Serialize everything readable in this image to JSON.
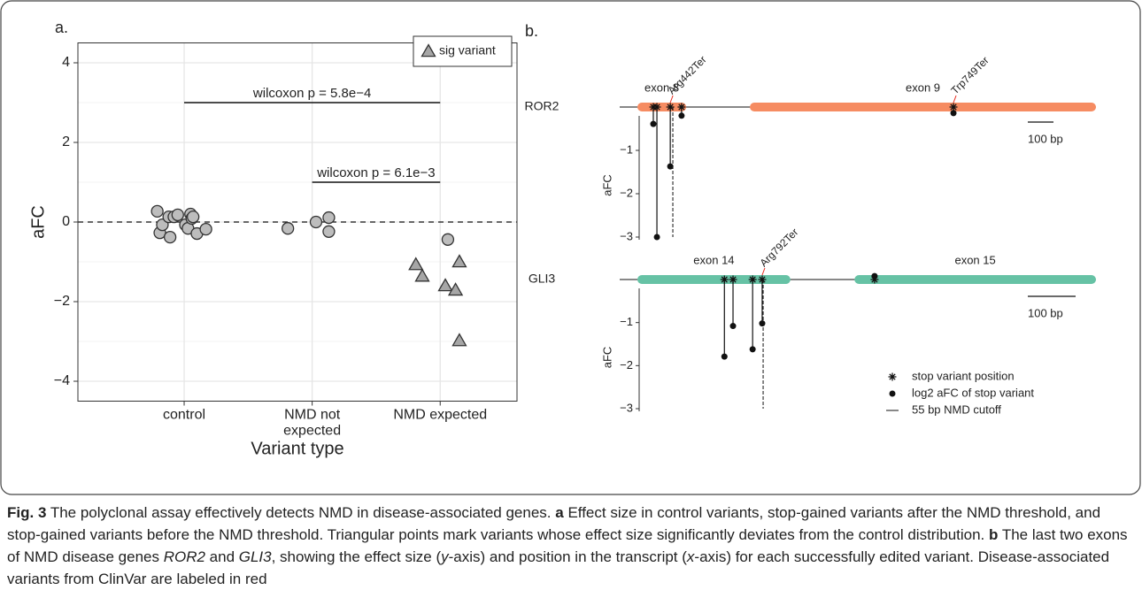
{
  "chart_data": [
    {
      "type": "scatter",
      "panel": "a.",
      "xlabel": "Variant type",
      "ylabel": "aFC",
      "xlim": [
        0.17,
        3.6
      ],
      "xticks": [
        {
          "value": 1,
          "label": "control"
        },
        {
          "value": 2,
          "label": "NMD not\nexpected"
        },
        {
          "value": 3,
          "label": "NMD expected"
        }
      ],
      "ylim": [
        -4.5,
        4.5
      ],
      "yticks": [
        {
          "value": -4,
          "label": "−4"
        },
        {
          "value": -2,
          "label": "−2"
        },
        0,
        2,
        4
      ],
      "minor_yticks": [
        -3,
        -1,
        1,
        3
      ],
      "grid": true,
      "hline": 0,
      "legend": "top-right",
      "series": [
        {
          "marker": "circle",
          "color": "#bdbdbd",
          "x": [
            0.79,
            0.81,
            0.83,
            0.88,
            0.89,
            0.92,
            0.95,
            1.01,
            1.03,
            1.05,
            1.06,
            1.07,
            1.1,
            1.17,
            1.81,
            2.03,
            2.13,
            2.13,
            3.06
          ],
          "values": [
            0.27,
            -0.27,
            -0.07,
            0.13,
            -0.38,
            0.13,
            0.18,
            -0.07,
            -0.16,
            0.2,
            0.09,
            0.13,
            -0.29,
            -0.18,
            -0.16,
            0.0,
            0.11,
            -0.24,
            -0.44
          ]
        },
        {
          "name": "sig variant",
          "marker": "triangle",
          "color": "#a6a6a6",
          "x": [
            2.81,
            2.86,
            3.04,
            3.12,
            3.15,
            3.15
          ],
          "values": [
            -1.07,
            -1.36,
            -1.6,
            -1.71,
            -1.0,
            -2.98
          ]
        }
      ],
      "brackets": [
        {
          "label": "wilcoxon p = 5.8e−4",
          "x": [
            1,
            3
          ],
          "y": 3
        },
        {
          "label": "wilcoxon p = 6.1e−3",
          "x": [
            2,
            3
          ],
          "y": 1
        }
      ]
    },
    {
      "type": "lollipop",
      "panel": "b.",
      "ylabel": "aFC",
      "label_color": "#e8291c",
      "scale_bar": {
        "label": "100 bp",
        "length": 100
      },
      "legend": [
        "stop variant position",
        "log2 aFC of stop variant",
        "55 bp NMD cutoff"
      ],
      "genes": [
        {
          "name": "ROR2",
          "color": "#f68c62",
          "xlim": [
            0,
            1855
          ],
          "ylim": [
            -3,
            0
          ],
          "yticks": [
            {
              "value": -3,
              "label": "−3"
            },
            {
              "value": -2,
              "label": "−2"
            },
            {
              "value": -1,
              "label": "−1"
            }
          ],
          "exons": [
            {
              "label": "exon 8",
              "start": 69,
              "end": 259
            },
            {
              "label": "exon 9",
              "start": 507,
              "end": 1855
            }
          ],
          "cutoff": 207,
          "variants": [
            {
              "bp": 131,
              "afc": -0.39
            },
            {
              "bp": 145,
              "afc": -3.0
            },
            {
              "bp": 197,
              "afc": -1.37,
              "label": "Arg442Ter"
            },
            {
              "bp": 241,
              "afc": -0.2
            },
            {
              "bp": 1300,
              "afc": -0.14,
              "label": "Trp749Ter"
            }
          ]
        },
        {
          "name": "GLI3",
          "color": "#66c2a5",
          "xlim": [
            0,
            996
          ],
          "ylim": [
            -3,
            0
          ],
          "yticks": [
            {
              "value": -3,
              "label": "−3"
            },
            {
              "value": -2,
              "label": "−2"
            },
            {
              "value": -1,
              "label": "−1"
            }
          ],
          "exons": [
            {
              "label": "exon 14",
              "start": 37,
              "end": 357
            },
            {
              "label": "exon 15",
              "start": 491,
              "end": 996
            }
          ],
          "cutoff": 300,
          "variants": [
            {
              "bp": 219,
              "afc": -1.79
            },
            {
              "bp": 237,
              "afc": -1.08
            },
            {
              "bp": 278,
              "afc": -1.62
            },
            {
              "bp": 298,
              "afc": -1.02,
              "label": "Arg792Ter"
            },
            {
              "bp": 533,
              "afc": 0.08
            }
          ]
        }
      ]
    }
  ],
  "caption": [
    "Fig. 3",
    " The polyclonal assay effectively detects NMD in disease-associated genes. ",
    "a",
    " Effect size in control variants, stop-gained variants after the NMD threshold, and stop-gained variants before the NMD threshold. Triangular points mark variants whose effect size significantly deviates from the control distribution. ",
    "b",
    " The last two exons of NMD disease genes ",
    "ROR2",
    " and ",
    "GLI3",
    ", showing the effect size (",
    "y",
    "-axis) and position in the transcript (",
    "x",
    "-axis) for each successfully edited variant. Disease-associated variants from ClinVar are labeled in red"
  ]
}
